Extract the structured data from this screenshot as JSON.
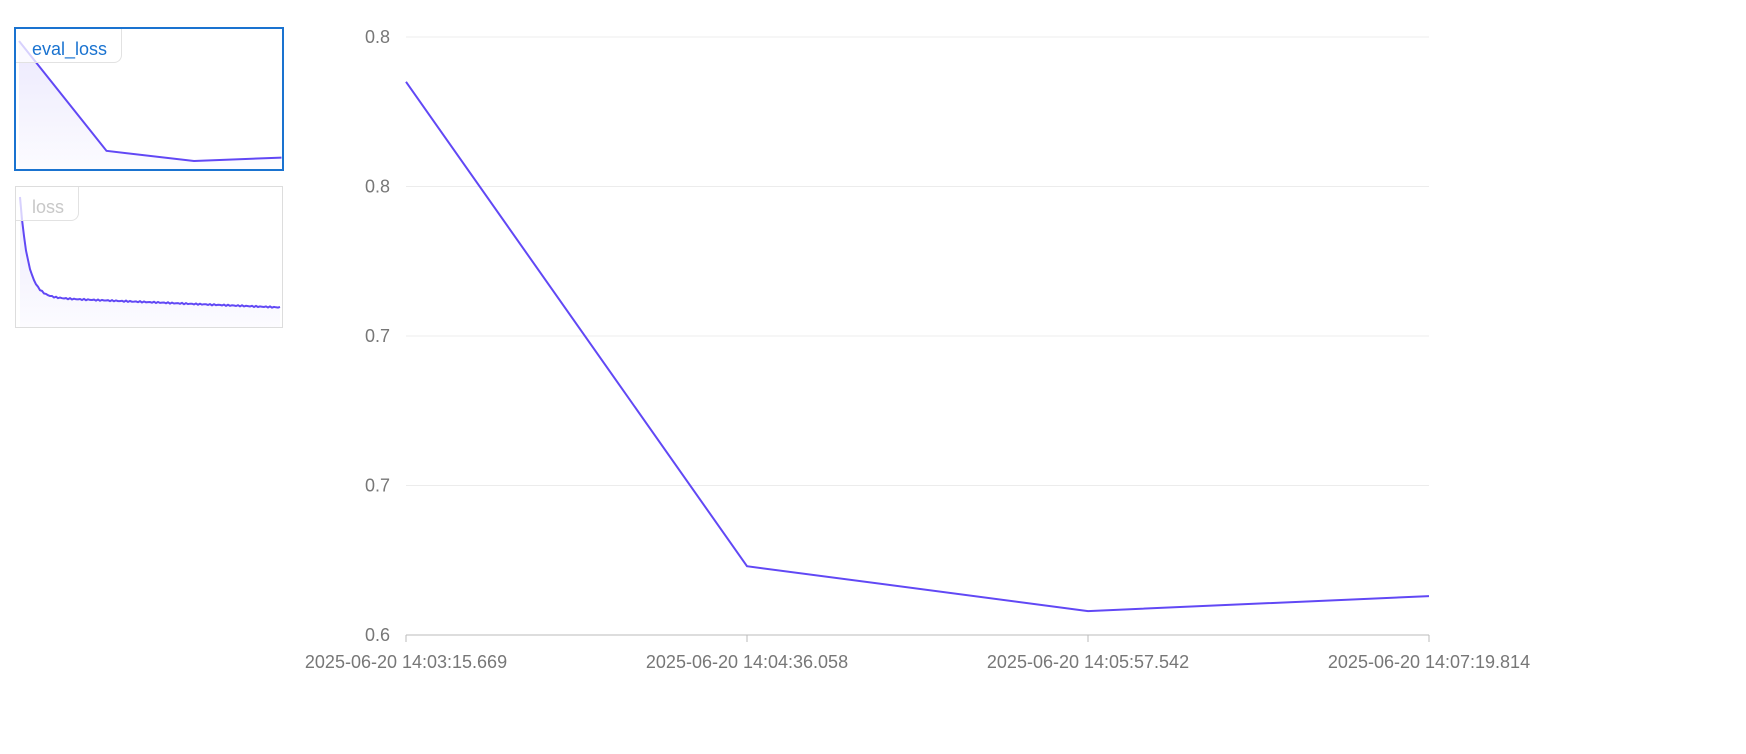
{
  "thumbnails": [
    {
      "label": "eval_loss",
      "active": true,
      "label_color": "#1a73d0"
    },
    {
      "label": "loss",
      "active": false,
      "label_color": "#c8c8c8"
    }
  ],
  "colors": {
    "line": "#6148f5",
    "grid": "#ececec",
    "axis": "#bbbbbb",
    "active_border": "#1a73d0"
  },
  "chart_data": {
    "type": "line",
    "title": "",
    "xlabel": "",
    "ylabel": "",
    "x": [
      "2025-06-20 14:03:15.669",
      "2025-06-20 14:04:36.058",
      "2025-06-20 14:05:57.542",
      "2025-06-20 14:07:19.814"
    ],
    "series": [
      {
        "values": [
          0.785,
          0.623,
          0.608,
          0.613
        ]
      }
    ],
    "ylim": [
      0.6,
      0.8
    ],
    "y_ticks": [
      0.6,
      0.65,
      0.7,
      0.75,
      0.8
    ],
    "y_tick_labels": [
      "0.6",
      "0.7",
      "0.7",
      "0.8",
      "0.8"
    ],
    "grid": true
  }
}
